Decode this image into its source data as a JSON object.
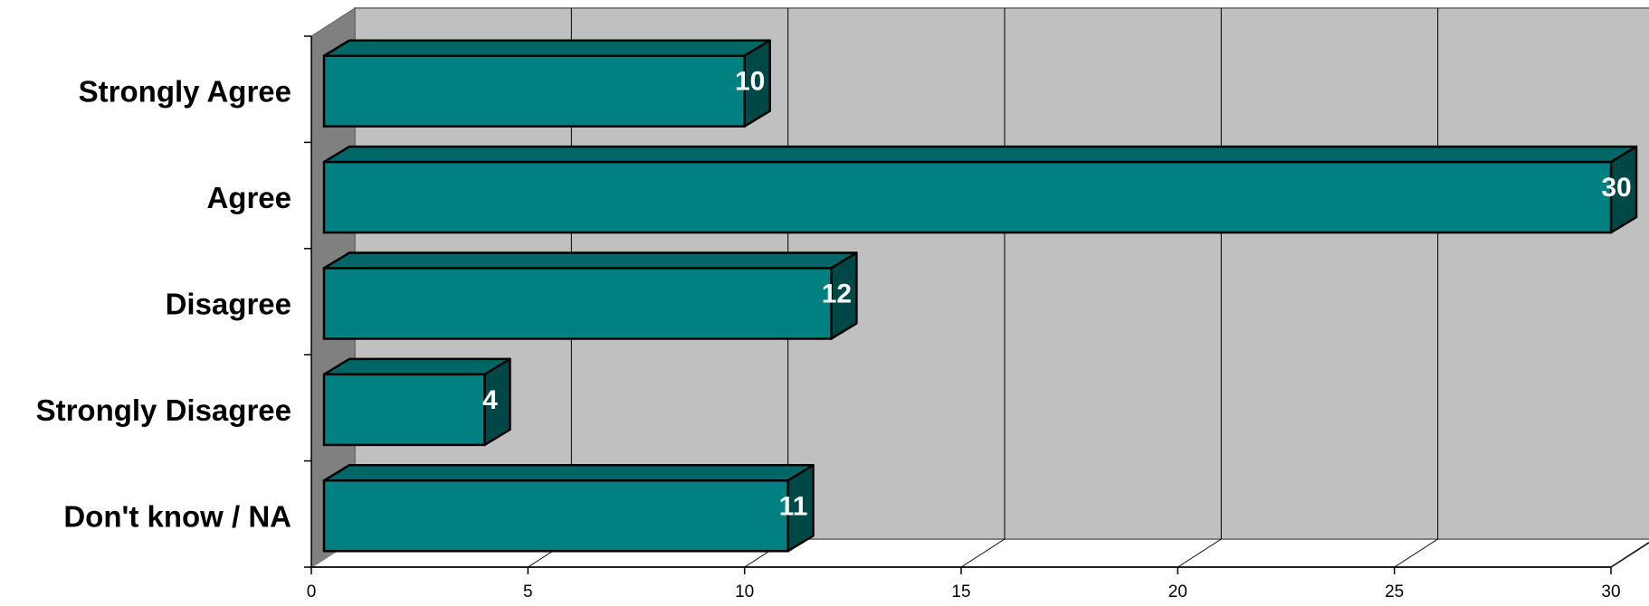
{
  "chart_data": {
    "type": "bar",
    "orientation": "horizontal",
    "style": "3d",
    "categories": [
      "Strongly Agree",
      "Agree",
      "Disagree",
      "Strongly Disagree",
      "Don't know / NA"
    ],
    "values": [
      10,
      30,
      12,
      4,
      11
    ],
    "data_labels": [
      "10",
      "30",
      "12",
      "4",
      "11"
    ],
    "xlim": [
      0,
      30
    ],
    "x_ticks": [
      0,
      5,
      10,
      15,
      20,
      25,
      30
    ],
    "x_tick_labels": [
      "0",
      "5",
      "10",
      "15",
      "20",
      "25",
      "30"
    ],
    "grid": true,
    "legend": false,
    "colors": {
      "bar_front": "#008080",
      "bar_top": "#006666",
      "bar_side": "#004848",
      "wall": "#c0c0c0",
      "side_wall": "#808080",
      "floor": "#ffffff",
      "data_label": "#ffffff"
    }
  }
}
